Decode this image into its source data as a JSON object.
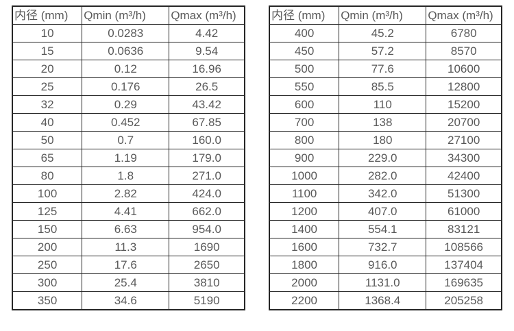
{
  "colors": {
    "border": "#262626",
    "text": "#595959",
    "background": "#ffffff"
  },
  "tables": [
    {
      "name": "flow-rate-table-small-diameters",
      "headers": [
        "内径 (mm)",
        "Qmin (m³/h)",
        "Qmax (m³/h)"
      ],
      "rows": [
        [
          "10",
          "0.0283",
          "4.42"
        ],
        [
          "15",
          "0.0636",
          "9.54"
        ],
        [
          "20",
          "0.12",
          "16.96"
        ],
        [
          "25",
          "0.176",
          "26.5"
        ],
        [
          "32",
          "0.29",
          "43.42"
        ],
        [
          "40",
          "0.452",
          "67.85"
        ],
        [
          "50",
          "0.7",
          "160.0"
        ],
        [
          "65",
          "1.19",
          "179.0"
        ],
        [
          "80",
          "1.8",
          "271.0"
        ],
        [
          "100",
          "2.82",
          "424.0"
        ],
        [
          "125",
          "4.41",
          "662.0"
        ],
        [
          "150",
          "6.63",
          "954.0"
        ],
        [
          "200",
          "11.3",
          "1690"
        ],
        [
          "250",
          "17.6",
          "2650"
        ],
        [
          "300",
          "25.4",
          "3810"
        ],
        [
          "350",
          "34.6",
          "5190"
        ]
      ]
    },
    {
      "name": "flow-rate-table-large-diameters",
      "headers": [
        "内径 (mm)",
        "Qmin (m³/h)",
        "Qmax (m³/h)"
      ],
      "rows": [
        [
          "400",
          "45.2",
          "6780"
        ],
        [
          "450",
          "57.2",
          "8570"
        ],
        [
          "500",
          "77.6",
          "10600"
        ],
        [
          "550",
          "85.5",
          "12800"
        ],
        [
          "600",
          "110",
          "15200"
        ],
        [
          "700",
          "138",
          "20700"
        ],
        [
          "800",
          "180",
          "27100"
        ],
        [
          "900",
          "229.0",
          "34300"
        ],
        [
          "1000",
          "282.0",
          "42400"
        ],
        [
          "1100",
          "342.0",
          "51300"
        ],
        [
          "1200",
          "407.0",
          "61000"
        ],
        [
          "1400",
          "554.1",
          "83121"
        ],
        [
          "1600",
          "732.7",
          "108566"
        ],
        [
          "1800",
          "916.0",
          "137404"
        ],
        [
          "2000",
          "1131.0",
          "169635"
        ],
        [
          "2200",
          "1368.4",
          "205258"
        ]
      ]
    }
  ]
}
